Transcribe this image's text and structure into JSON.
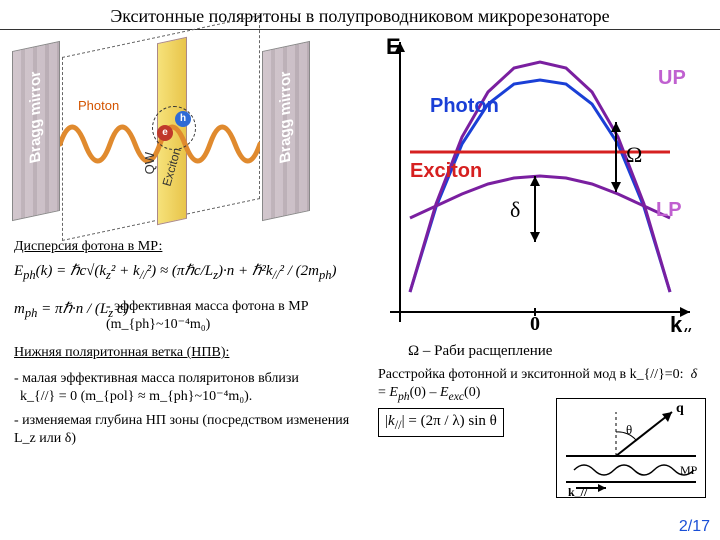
{
  "title": "Экситонные поляритоны в полупроводниковом микрорезонаторе",
  "pageNumber": "2/17",
  "cavity": {
    "mirrorLabel": "Bragg mirror",
    "photonLabel": "Photon",
    "excitonLabel": "Exciton",
    "qwLabel": "QW",
    "e": "e",
    "h": "h",
    "waveColor": "#e08a2e"
  },
  "chart": {
    "ELabel": "E",
    "kLabel": "k",
    "kSub": "//",
    "zero": "0",
    "upLabel": "UP",
    "lpLabel": "LP",
    "photonLabel": "Photon",
    "excitonLabel": "Exciton",
    "omega": "Ω",
    "delta": "δ",
    "colors": {
      "photon": "#1a3fd6",
      "exciton": "#d62020",
      "polariton": "#7a1fa0",
      "upFill": "#c060d0"
    },
    "xlim": [
      -1,
      1
    ],
    "photonY": [
      260,
      175,
      112,
      72,
      52,
      48,
      52,
      72,
      112,
      175,
      260
    ],
    "upY": [
      260,
      172,
      105,
      60,
      36,
      30,
      36,
      60,
      105,
      172,
      260
    ],
    "lpY": [
      186,
      174,
      162,
      152,
      146,
      144,
      146,
      152,
      162,
      174,
      186
    ],
    "excitonY": 120
  },
  "left": {
    "disp": "Дисперсия фотона в МР:",
    "eqPhoton": "E_{ph}(k) = ℏc√(k_z²+k_{//}²) ≈ (πℏc/L_z) n + (ℏ²k_{//}²)/(2m_{ph})",
    "mPhoton": "m_{ph} = πℏ n / (L_z c)",
    "effMass": " - эффективная масса фотона в МР (m_{ph}~10⁻⁴m₀)",
    "lower": "Нижняя поляритонная ветка (НПВ):",
    "b1a": " - малая эффективная масса  поляритонов вблизи",
    "b1b": "k_{//} = 0   (m_{pol} ≈ m_{ph}~10⁻⁴m₀).",
    "b2": " - изменяемая глубина НП зоны (посредством изменения L_z или δ)"
  },
  "right": {
    "rabi": "Ω –  Раби расщепление",
    "detune": "Расстройка фотонной и экситонной мод в k_{//}=0:",
    "deltaEq": "δ = E_{ph}(0) – E_{exc}(0)",
    "kEq": "|k_{//}| = (2π/λ) sin θ",
    "insetLabels": {
      "q": "q",
      "theta": "θ",
      "kpar": "k_//",
      "mr": "МР"
    }
  }
}
